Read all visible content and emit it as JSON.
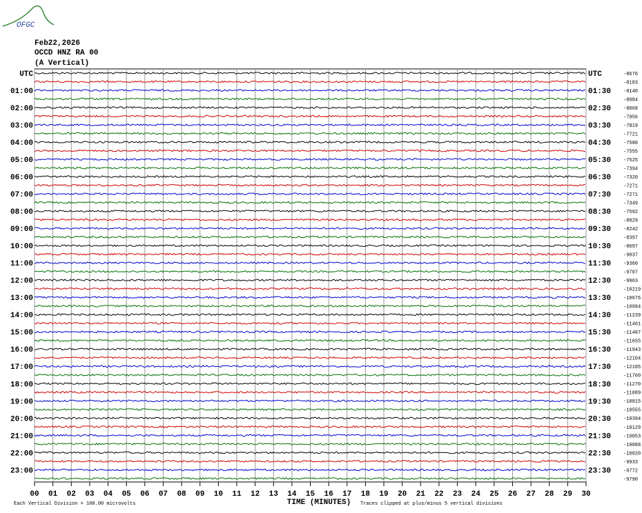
{
  "header": {
    "logo": "OFGC",
    "date": "Feb22,2026",
    "station": "OCCD HNZ RA 00",
    "component": "(A Vertical)"
  },
  "left_labels": [
    "UTC",
    "01:00",
    "02:00",
    "03:00",
    "04:00",
    "05:00",
    "06:00",
    "07:00",
    "08:00",
    "09:00",
    "10:00",
    "11:00",
    "12:00",
    "13:00",
    "14:00",
    "15:00",
    "16:00",
    "17:00",
    "18:00",
    "19:00",
    "20:00",
    "21:00",
    "22:00",
    "23:00"
  ],
  "right_labels": [
    "UTC",
    "01:30",
    "02:30",
    "03:30",
    "04:30",
    "05:30",
    "06:30",
    "07:30",
    "08:30",
    "09:30",
    "10:30",
    "11:30",
    "12:30",
    "13:30",
    "14:30",
    "15:30",
    "16:30",
    "17:30",
    "18:30",
    "19:30",
    "20:30",
    "21:30",
    "22:30",
    "23:30"
  ],
  "trace_offsets": [
    -8676,
    -8183,
    -8140,
    -8084,
    -8068,
    -7956,
    -7819,
    -7721,
    -7580,
    -7555,
    -7525,
    -7394,
    -7320,
    -7271,
    -7271,
    -7349,
    -7592,
    -8029,
    -8242,
    -8397,
    -8697,
    -9037,
    -9360,
    -9707,
    -9963,
    -10219,
    -10676,
    -10994,
    -11239,
    -11461,
    -11487,
    -11655,
    -11943,
    -12104,
    -12185,
    -11760,
    -11270,
    -11089,
    -10815,
    -10555,
    -10394,
    -10129,
    -10053,
    -10088,
    -10020,
    -9933,
    -9772,
    -9790
  ],
  "trace_colors": [
    "#000000",
    "#d00000",
    "#0000d0",
    "#007000"
  ],
  "x_ticks": [
    "00",
    "01",
    "02",
    "03",
    "04",
    "05",
    "06",
    "07",
    "08",
    "09",
    "10",
    "11",
    "12",
    "13",
    "14",
    "15",
    "16",
    "17",
    "18",
    "19",
    "20",
    "21",
    "22",
    "23",
    "24",
    "25",
    "26",
    "27",
    "28",
    "29",
    "30"
  ],
  "x_axis_label": "TIME (MINUTES)",
  "footer": {
    "scale": "Each Vertical Division =  100.00 microvolts",
    "clip": "Traces clipped at plus/minus 5 vertical divisions"
  }
}
